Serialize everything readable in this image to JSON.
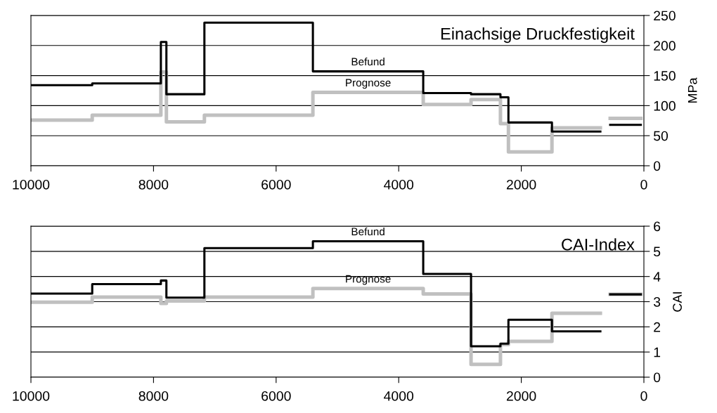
{
  "chart_data": [
    {
      "type": "step",
      "title": "Einachsige Druckfestigkeit",
      "ylabel": "MPa",
      "xlim": [
        10000,
        0
      ],
      "xticks": [
        10000,
        8000,
        6000,
        4000,
        2000,
        0
      ],
      "ylim": [
        0,
        250
      ],
      "yticks": [
        0,
        50,
        100,
        150,
        200,
        250
      ],
      "grid": "y",
      "legend": false,
      "series": [
        {
          "name": "Prognose",
          "color": "#c0c0c0",
          "x": [
            10000,
            9000,
            7880,
            7790,
            7170,
            5400,
            3600,
            2820,
            2340,
            2210,
            1500,
            710
          ],
          "values": [
            76,
            84,
            156,
            73,
            84,
            122,
            102,
            110,
            70,
            23,
            63,
            63
          ]
        },
        {
          "color": "#c0c0c0",
          "x": [
            550,
            50
          ],
          "values": [
            79,
            79
          ]
        },
        {
          "name": "Befund",
          "color": "#000000",
          "x": [
            10000,
            9000,
            7880,
            7790,
            7170,
            5400,
            3600,
            2820,
            2340,
            2210,
            1500,
            710
          ],
          "values": [
            134,
            137,
            206,
            119,
            238,
            157,
            121,
            119,
            114,
            72,
            57,
            57
          ]
        },
        {
          "color": "#000000",
          "x": [
            550,
            50
          ],
          "values": [
            68,
            68
          ]
        }
      ]
    },
    {
      "type": "step",
      "title": "CAI-Index",
      "ylabel": "CAI",
      "xlim": [
        10000,
        0
      ],
      "xticks": [
        10000,
        8000,
        6000,
        4000,
        2000,
        0
      ],
      "ylim": [
        0,
        6
      ],
      "yticks": [
        0,
        1,
        2,
        3,
        4,
        5,
        6
      ],
      "grid": "y",
      "legend": false,
      "series": [
        {
          "name": "Prognose",
          "color": "#c0c0c0",
          "x": [
            10000,
            9000,
            7880,
            7790,
            7170,
            5400,
            3600,
            2820,
            2340,
            2210,
            1500,
            710
          ],
          "values": [
            2.98,
            3.18,
            2.93,
            3.03,
            3.18,
            3.52,
            3.31,
            0.51,
            1.3,
            1.42,
            2.54,
            2.54
          ]
        },
        {
          "color": "#c0c0c0",
          "x": [
            550,
            50
          ],
          "values": [
            3.29,
            3.29
          ]
        },
        {
          "name": "Befund",
          "color": "#000000",
          "x": [
            10000,
            9000,
            7880,
            7790,
            7170,
            5400,
            3600,
            2820,
            2340,
            2210,
            1500,
            710
          ],
          "values": [
            3.32,
            3.7,
            3.84,
            3.16,
            5.13,
            5.4,
            4.1,
            1.23,
            1.33,
            2.28,
            1.82,
            1.82
          ]
        },
        {
          "color": "#000000",
          "x": [
            550,
            50
          ],
          "values": [
            3.29,
            3.29
          ]
        }
      ]
    }
  ]
}
